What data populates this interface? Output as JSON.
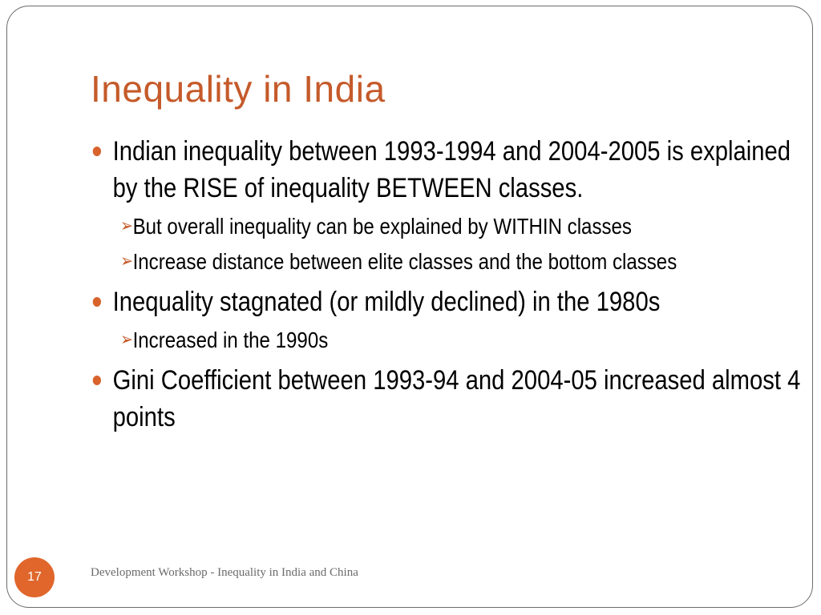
{
  "slide": {
    "title": "Inequality in India",
    "bullets": [
      {
        "text": "Indian inequality between 1993-1994 and 2004-2005 is explained by the RISE of inequality BETWEEN classes.",
        "subs": [
          "But overall inequality can be explained by WITHIN classes",
          "Increase distance between elite classes and the bottom classes"
        ]
      },
      {
        "text": "Inequality stagnated (or mildly declined) in the 1980s",
        "subs": [
          "Increased in the 1990s"
        ]
      },
      {
        "text": "Gini Coefficient between 1993-94 and 2004-05 increased almost 4 points",
        "subs": []
      }
    ],
    "footer": {
      "page_number": "17",
      "text": "Development Workshop - Inequality in India and China"
    }
  },
  "colors": {
    "accent": "#c55a2a",
    "bullet": "#d8632c",
    "page_badge": "#e0662b",
    "footer_text": "#6a6a6a",
    "frame": "#6b6b6b"
  },
  "icons": {
    "level1_bullet": "filled-circle-bullet",
    "level2_bullet": "arrowhead-bullet"
  }
}
